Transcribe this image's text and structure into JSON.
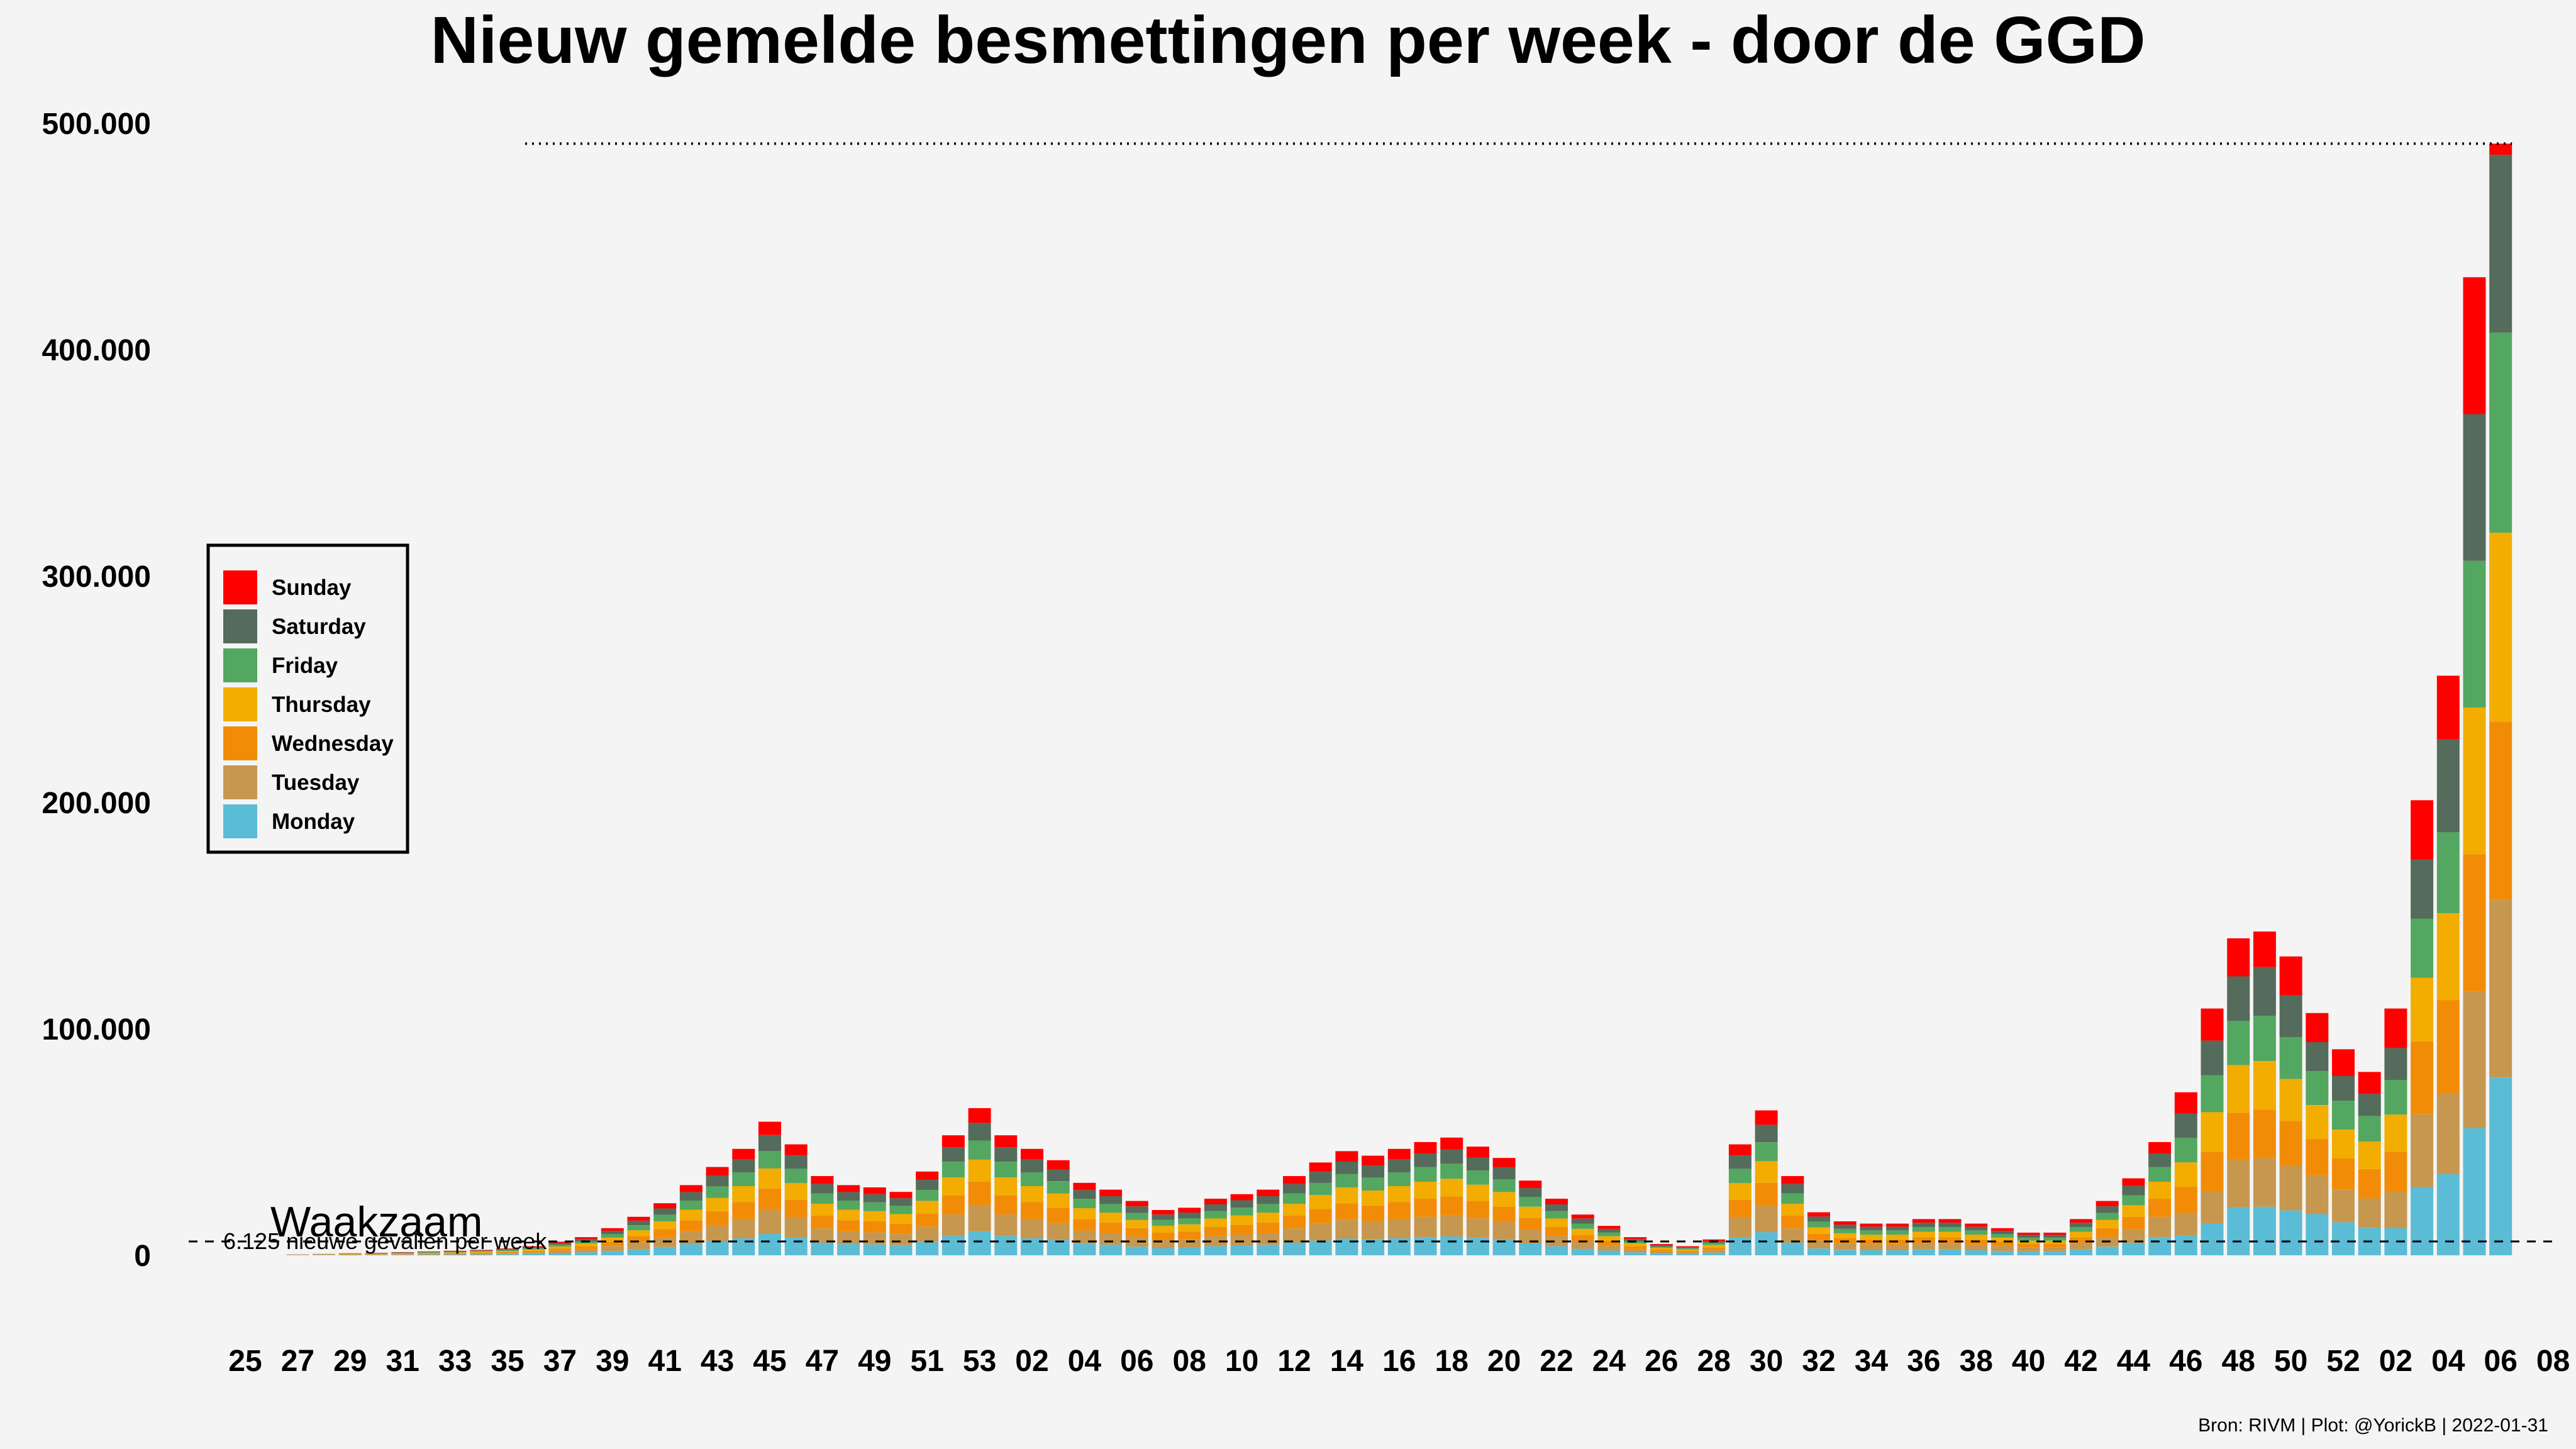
{
  "chart_data": {
    "type": "bar",
    "stacked": true,
    "title": "Nieuw gemelde besmettingen per week - door de GGD",
    "xlabel": "",
    "ylabel": "",
    "ylim": [
      0,
      500000
    ],
    "yticks": [
      {
        "value": 0,
        "label": "0"
      },
      {
        "value": 100000,
        "label": "100.000"
      },
      {
        "value": 200000,
        "label": "200.000"
      },
      {
        "value": 300000,
        "label": "300.000"
      },
      {
        "value": 400000,
        "label": "400.000"
      },
      {
        "value": 500000,
        "label": "500.000"
      }
    ],
    "weeks": [
      "25",
      "26",
      "27",
      "28",
      "29",
      "30",
      "31",
      "32",
      "33",
      "34",
      "35",
      "36",
      "37",
      "38",
      "39",
      "40",
      "41",
      "42",
      "43",
      "44",
      "45",
      "46",
      "47",
      "48",
      "49",
      "50",
      "51",
      "52",
      "53",
      "01",
      "02",
      "03",
      "04",
      "05",
      "06",
      "07",
      "08",
      "09",
      "10",
      "11",
      "12",
      "13",
      "14",
      "15",
      "16",
      "17",
      "18",
      "19",
      "20",
      "21",
      "22",
      "23",
      "24",
      "25",
      "26",
      "27",
      "28",
      "29",
      "30",
      "31",
      "32",
      "33",
      "34",
      "35",
      "36",
      "37",
      "38",
      "39",
      "40",
      "41",
      "42",
      "43",
      "44",
      "45",
      "46",
      "47",
      "48",
      "49",
      "50",
      "51",
      "52",
      "01",
      "02",
      "03",
      "04",
      "05",
      "06",
      "07",
      "08"
    ],
    "xtick_labels": [
      "25",
      "27",
      "29",
      "31",
      "33",
      "35",
      "37",
      "39",
      "41",
      "43",
      "45",
      "47",
      "49",
      "51",
      "53",
      "02",
      "04",
      "06",
      "08",
      "10",
      "12",
      "14",
      "16",
      "18",
      "20",
      "22",
      "24",
      "26",
      "28",
      "30",
      "32",
      "34",
      "36",
      "38",
      "40",
      "42",
      "44",
      "46",
      "48",
      "50",
      "52",
      "02",
      "04",
      "06",
      "08"
    ],
    "xtick_every": 2,
    "totals": [
      0,
      0,
      400,
      600,
      900,
      1100,
      1400,
      1700,
      2000,
      2400,
      3000,
      4000,
      6000,
      8000,
      12000,
      17000,
      23000,
      31000,
      39000,
      47000,
      59000,
      49000,
      35000,
      31000,
      30000,
      28000,
      37000,
      53000,
      65000,
      53000,
      47000,
      42000,
      32000,
      29000,
      24000,
      20000,
      21000,
      25000,
      27000,
      29000,
      35000,
      41000,
      46000,
      44000,
      47000,
      50000,
      52000,
      48000,
      43000,
      33000,
      25000,
      18000,
      13000,
      8000,
      5000,
      4000,
      7000,
      49000,
      64000,
      35000,
      19000,
      15000,
      14000,
      14000,
      16000,
      16000,
      14000,
      12000,
      10000,
      10000,
      16000,
      24000,
      34000,
      50000,
      72000,
      109000,
      140000,
      143000,
      132000,
      107000,
      91000,
      81000,
      109000,
      201000,
      256000,
      432000,
      491000,
      0,
      0
    ],
    "shares": {
      "Monday": [
        0.16,
        0.16,
        0.16,
        0.16,
        0.16,
        0.16,
        0.16,
        0.16,
        0.16,
        0.16,
        0.16,
        0.16,
        0.16,
        0.16,
        0.16,
        0.16,
        0.16,
        0.16,
        0.16,
        0.16,
        0.16,
        0.16,
        0.16,
        0.16,
        0.16,
        0.16,
        0.16,
        0.16,
        0.16,
        0.16,
        0.16,
        0.16,
        0.16,
        0.16,
        0.16,
        0.16,
        0.16,
        0.16,
        0.16,
        0.16,
        0.16,
        0.16,
        0.16,
        0.16,
        0.16,
        0.16,
        0.16,
        0.16,
        0.16,
        0.16,
        0.16,
        0.16,
        0.16,
        0.16,
        0.16,
        0.16,
        0.16,
        0.16,
        0.16,
        0.16,
        0.16,
        0.16,
        0.16,
        0.16,
        0.16,
        0.16,
        0.16,
        0.16,
        0.16,
        0.16,
        0.16,
        0.16,
        0.16,
        0.16,
        0.12,
        0.13,
        0.15,
        0.15,
        0.15,
        0.17,
        0.16,
        0.15,
        0.11,
        0.15,
        0.14,
        0.13,
        0.16,
        0.16,
        0.16
      ],
      "Tuesday": [
        0.18,
        0.18,
        0.18,
        0.18,
        0.18,
        0.18,
        0.18,
        0.18,
        0.18,
        0.18,
        0.18,
        0.18,
        0.18,
        0.18,
        0.18,
        0.18,
        0.18,
        0.18,
        0.18,
        0.18,
        0.18,
        0.18,
        0.18,
        0.18,
        0.18,
        0.18,
        0.18,
        0.18,
        0.18,
        0.18,
        0.18,
        0.18,
        0.18,
        0.18,
        0.18,
        0.18,
        0.18,
        0.18,
        0.18,
        0.18,
        0.18,
        0.18,
        0.18,
        0.18,
        0.18,
        0.18,
        0.18,
        0.18,
        0.18,
        0.18,
        0.18,
        0.18,
        0.18,
        0.18,
        0.18,
        0.18,
        0.18,
        0.18,
        0.18,
        0.18,
        0.18,
        0.18,
        0.18,
        0.18,
        0.18,
        0.18,
        0.18,
        0.18,
        0.18,
        0.18,
        0.18,
        0.18,
        0.18,
        0.18,
        0.14,
        0.13,
        0.15,
        0.15,
        0.15,
        0.16,
        0.16,
        0.16,
        0.15,
        0.16,
        0.14,
        0.14,
        0.16,
        0.16,
        0.16
      ],
      "Wednesday": [
        0.16,
        0.16,
        0.16,
        0.16,
        0.16,
        0.16,
        0.16,
        0.16,
        0.16,
        0.16,
        0.16,
        0.16,
        0.16,
        0.16,
        0.16,
        0.16,
        0.16,
        0.16,
        0.16,
        0.16,
        0.16,
        0.16,
        0.16,
        0.16,
        0.16,
        0.16,
        0.16,
        0.16,
        0.16,
        0.16,
        0.16,
        0.16,
        0.16,
        0.16,
        0.16,
        0.16,
        0.16,
        0.16,
        0.16,
        0.16,
        0.16,
        0.16,
        0.16,
        0.16,
        0.16,
        0.16,
        0.16,
        0.16,
        0.16,
        0.16,
        0.16,
        0.16,
        0.16,
        0.16,
        0.16,
        0.16,
        0.16,
        0.16,
        0.16,
        0.16,
        0.16,
        0.16,
        0.16,
        0.16,
        0.16,
        0.16,
        0.16,
        0.16,
        0.16,
        0.16,
        0.16,
        0.16,
        0.16,
        0.16,
        0.16,
        0.16,
        0.15,
        0.15,
        0.15,
        0.15,
        0.15,
        0.16,
        0.16,
        0.16,
        0.16,
        0.14,
        0.16,
        0.16,
        0.16
      ],
      "Thursday": [
        0.15,
        0.15,
        0.15,
        0.15,
        0.15,
        0.15,
        0.15,
        0.15,
        0.15,
        0.15,
        0.15,
        0.15,
        0.15,
        0.15,
        0.15,
        0.15,
        0.15,
        0.15,
        0.15,
        0.15,
        0.15,
        0.15,
        0.15,
        0.15,
        0.15,
        0.15,
        0.15,
        0.15,
        0.15,
        0.15,
        0.15,
        0.15,
        0.15,
        0.15,
        0.15,
        0.15,
        0.15,
        0.15,
        0.15,
        0.15,
        0.15,
        0.15,
        0.15,
        0.15,
        0.15,
        0.15,
        0.15,
        0.15,
        0.15,
        0.15,
        0.15,
        0.15,
        0.15,
        0.15,
        0.15,
        0.15,
        0.15,
        0.15,
        0.15,
        0.15,
        0.15,
        0.15,
        0.15,
        0.15,
        0.15,
        0.15,
        0.15,
        0.15,
        0.15,
        0.15,
        0.15,
        0.15,
        0.15,
        0.15,
        0.15,
        0.16,
        0.15,
        0.15,
        0.14,
        0.14,
        0.14,
        0.15,
        0.15,
        0.14,
        0.15,
        0.15,
        0.17,
        0.15,
        0.15
      ],
      "Friday": [
        0.13,
        0.13,
        0.13,
        0.13,
        0.13,
        0.13,
        0.13,
        0.13,
        0.13,
        0.13,
        0.13,
        0.13,
        0.13,
        0.13,
        0.13,
        0.13,
        0.13,
        0.13,
        0.13,
        0.13,
        0.13,
        0.13,
        0.13,
        0.13,
        0.13,
        0.13,
        0.13,
        0.13,
        0.13,
        0.13,
        0.13,
        0.13,
        0.13,
        0.13,
        0.13,
        0.13,
        0.13,
        0.13,
        0.13,
        0.13,
        0.13,
        0.13,
        0.13,
        0.13,
        0.13,
        0.13,
        0.13,
        0.13,
        0.13,
        0.13,
        0.13,
        0.13,
        0.13,
        0.13,
        0.13,
        0.13,
        0.13,
        0.13,
        0.13,
        0.13,
        0.13,
        0.13,
        0.13,
        0.13,
        0.13,
        0.13,
        0.13,
        0.13,
        0.13,
        0.13,
        0.13,
        0.13,
        0.13,
        0.13,
        0.15,
        0.15,
        0.14,
        0.14,
        0.14,
        0.14,
        0.14,
        0.14,
        0.14,
        0.13,
        0.14,
        0.15,
        0.18,
        0.13,
        0.13
      ],
      "Saturday": [
        0.12,
        0.12,
        0.12,
        0.12,
        0.12,
        0.12,
        0.12,
        0.12,
        0.12,
        0.12,
        0.12,
        0.12,
        0.12,
        0.12,
        0.12,
        0.12,
        0.12,
        0.12,
        0.12,
        0.12,
        0.12,
        0.12,
        0.12,
        0.12,
        0.12,
        0.12,
        0.12,
        0.12,
        0.12,
        0.12,
        0.12,
        0.12,
        0.12,
        0.12,
        0.12,
        0.12,
        0.12,
        0.12,
        0.12,
        0.12,
        0.12,
        0.12,
        0.12,
        0.12,
        0.12,
        0.12,
        0.12,
        0.12,
        0.12,
        0.12,
        0.12,
        0.12,
        0.12,
        0.12,
        0.12,
        0.12,
        0.12,
        0.12,
        0.12,
        0.12,
        0.12,
        0.12,
        0.12,
        0.12,
        0.12,
        0.12,
        0.12,
        0.12,
        0.12,
        0.12,
        0.12,
        0.12,
        0.12,
        0.12,
        0.15,
        0.14,
        0.14,
        0.15,
        0.14,
        0.12,
        0.12,
        0.12,
        0.13,
        0.13,
        0.16,
        0.15,
        0.16,
        0.12,
        0.12
      ],
      "Sunday": [
        0.1,
        0.1,
        0.1,
        0.1,
        0.1,
        0.1,
        0.1,
        0.1,
        0.1,
        0.1,
        0.1,
        0.1,
        0.1,
        0.1,
        0.1,
        0.1,
        0.1,
        0.1,
        0.1,
        0.1,
        0.1,
        0.1,
        0.1,
        0.1,
        0.1,
        0.1,
        0.1,
        0.1,
        0.1,
        0.1,
        0.1,
        0.1,
        0.1,
        0.1,
        0.1,
        0.1,
        0.1,
        0.1,
        0.1,
        0.1,
        0.1,
        0.1,
        0.1,
        0.1,
        0.1,
        0.1,
        0.1,
        0.1,
        0.1,
        0.1,
        0.1,
        0.1,
        0.1,
        0.1,
        0.1,
        0.1,
        0.1,
        0.1,
        0.1,
        0.1,
        0.1,
        0.1,
        0.1,
        0.1,
        0.1,
        0.1,
        0.1,
        0.1,
        0.1,
        0.1,
        0.1,
        0.1,
        0.1,
        0.1,
        0.13,
        0.13,
        0.12,
        0.11,
        0.13,
        0.12,
        0.13,
        0.12,
        0.16,
        0.13,
        0.11,
        0.14,
        0.01,
        0.12,
        0.12
      ]
    },
    "series": [
      {
        "name": "Monday",
        "color": "#5bbcd6"
      },
      {
        "name": "Tuesday",
        "color": "#c6974f"
      },
      {
        "name": "Wednesday",
        "color": "#f28c07"
      },
      {
        "name": "Thursday",
        "color": "#f2ad00"
      },
      {
        "name": "Friday",
        "color": "#54a760"
      },
      {
        "name": "Saturday",
        "color": "#556b5b"
      },
      {
        "name": "Sunday",
        "color": "#ff0000"
      }
    ],
    "legend_order": [
      "Sunday",
      "Saturday",
      "Friday",
      "Thursday",
      "Wednesday",
      "Tuesday",
      "Monday"
    ],
    "legend_position": "left",
    "reference_line": {
      "value": 6125,
      "label": "6.125 nieuwe gevallen per week",
      "style": "dashed"
    },
    "max_line": {
      "value": 491000,
      "style": "dotted"
    },
    "annotation": "Waakzaam",
    "caption": "Bron: RIVM | Plot: @YorickB |  2022-01-31",
    "grid": false
  }
}
